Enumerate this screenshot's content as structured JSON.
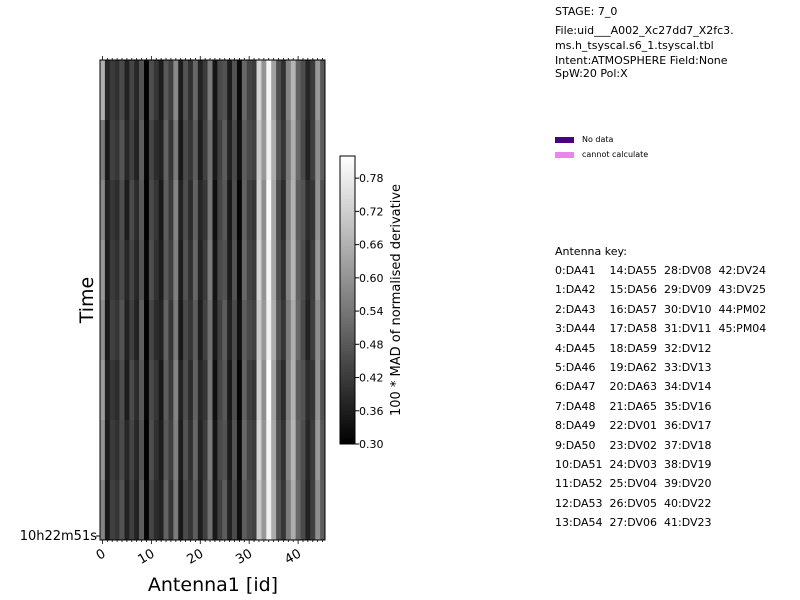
{
  "header": {
    "stage": "STAGE: 7_0",
    "file_line1": "File:uid___A002_Xc27dd7_X2fc3.",
    "file_line2": "ms.h_tsyscal.s6_1.tsyscal.tbl",
    "intent_line": "Intent:ATMOSPHERE Field:None",
    "spw_line": "SpW:20 Pol:X"
  },
  "legend": {
    "items": [
      {
        "label": "No data",
        "color": "#4b0082"
      },
      {
        "label": "cannot calculate",
        "color": "#ee82ee"
      }
    ]
  },
  "antenna_key": {
    "title": "Antenna key:",
    "lines": [
      "0:DA41    14:DA55  28:DV08  42:DV24",
      "1:DA42    15:DA56  29:DV09  43:DV25",
      "2:DA43    16:DA57  30:DV10  44:PM02",
      "3:DA44    17:DA58  31:DV11  45:PM04",
      "4:DA45    18:DA59  32:DV12",
      "5:DA46    19:DA62  33:DV13",
      "6:DA47    20:DA63  34:DV14",
      "7:DA48    21:DA65  35:DV16",
      "8:DA49    22:DV01  36:DV17",
      "9:DA50    23:DV02  37:DV18",
      "10:DA51  24:DV03  38:DV19",
      "11:DA52  25:DV04  39:DV20",
      "12:DA53  26:DV05  40:DV22",
      "13:DA54  27:DV06  41:DV23"
    ]
  },
  "chart_data": {
    "type": "heatmap",
    "xlabel": "Antenna1 [id]",
    "ylabel": "Time",
    "x_ticks": [
      0,
      10,
      20,
      30,
      40
    ],
    "xlim": [
      -0.5,
      45.5
    ],
    "y_tick_label": "10h22m51s",
    "colorbar": {
      "label": "100 * MAD of normalised derivative",
      "ticks": [
        "0.30",
        "0.36",
        "0.42",
        "0.48",
        "0.54",
        "0.60",
        "0.66",
        "0.72",
        "0.78"
      ],
      "range": [
        0.3,
        0.82
      ],
      "colormap": "gray"
    },
    "n_time": 8,
    "column_means": [
      0.6,
      0.36,
      0.42,
      0.4,
      0.46,
      0.37,
      0.44,
      0.38,
      0.48,
      0.3,
      0.45,
      0.4,
      0.36,
      0.49,
      0.42,
      0.56,
      0.36,
      0.46,
      0.4,
      0.5,
      0.37,
      0.42,
      0.54,
      0.34,
      0.44,
      0.48,
      0.36,
      0.46,
      0.32,
      0.5,
      0.44,
      0.42,
      0.72,
      0.6,
      0.8,
      0.64,
      0.46,
      0.4,
      0.56,
      0.66,
      0.5,
      0.46,
      0.38,
      0.42,
      0.6,
      0.48
    ],
    "values": [
      [
        0.66,
        0.38,
        0.42,
        0.4,
        0.45,
        0.37,
        0.44,
        0.38,
        0.47,
        0.3,
        0.46,
        0.41,
        0.36,
        0.48,
        0.43,
        0.58,
        0.36,
        0.47,
        0.4,
        0.51,
        0.37,
        0.42,
        0.55,
        0.34,
        0.45,
        0.47,
        0.36,
        0.47,
        0.32,
        0.51,
        0.44,
        0.42,
        0.73,
        0.6,
        0.8,
        0.63,
        0.46,
        0.4,
        0.57,
        0.67,
        0.5,
        0.46,
        0.38,
        0.42,
        0.61,
        0.48
      ],
      [
        0.55,
        0.35,
        0.43,
        0.41,
        0.47,
        0.38,
        0.43,
        0.37,
        0.49,
        0.31,
        0.44,
        0.39,
        0.37,
        0.5,
        0.41,
        0.55,
        0.35,
        0.45,
        0.41,
        0.49,
        0.36,
        0.43,
        0.53,
        0.35,
        0.43,
        0.49,
        0.37,
        0.45,
        0.33,
        0.49,
        0.45,
        0.43,
        0.71,
        0.61,
        0.79,
        0.65,
        0.47,
        0.41,
        0.55,
        0.65,
        0.51,
        0.45,
        0.37,
        0.43,
        0.59,
        0.49
      ],
      [
        0.58,
        0.37,
        0.41,
        0.39,
        0.46,
        0.36,
        0.45,
        0.39,
        0.48,
        0.3,
        0.45,
        0.41,
        0.35,
        0.49,
        0.42,
        0.57,
        0.37,
        0.46,
        0.39,
        0.5,
        0.38,
        0.41,
        0.54,
        0.33,
        0.44,
        0.48,
        0.35,
        0.46,
        0.31,
        0.5,
        0.43,
        0.41,
        0.72,
        0.59,
        0.81,
        0.64,
        0.45,
        0.39,
        0.56,
        0.66,
        0.49,
        0.47,
        0.39,
        0.41,
        0.6,
        0.47
      ],
      [
        0.61,
        0.36,
        0.42,
        0.4,
        0.45,
        0.38,
        0.44,
        0.38,
        0.47,
        0.31,
        0.46,
        0.4,
        0.36,
        0.48,
        0.43,
        0.56,
        0.36,
        0.47,
        0.4,
        0.51,
        0.37,
        0.42,
        0.55,
        0.34,
        0.45,
        0.47,
        0.36,
        0.47,
        0.32,
        0.51,
        0.44,
        0.42,
        0.73,
        0.6,
        0.8,
        0.64,
        0.46,
        0.4,
        0.57,
        0.67,
        0.5,
        0.46,
        0.38,
        0.42,
        0.61,
        0.48
      ],
      [
        0.59,
        0.35,
        0.43,
        0.41,
        0.47,
        0.37,
        0.43,
        0.37,
        0.49,
        0.3,
        0.44,
        0.39,
        0.37,
        0.5,
        0.41,
        0.55,
        0.35,
        0.45,
        0.41,
        0.49,
        0.36,
        0.43,
        0.53,
        0.35,
        0.43,
        0.49,
        0.37,
        0.45,
        0.33,
        0.49,
        0.45,
        0.43,
        0.71,
        0.61,
        0.79,
        0.65,
        0.47,
        0.41,
        0.55,
        0.65,
        0.51,
        0.45,
        0.37,
        0.43,
        0.59,
        0.49
      ],
      [
        0.62,
        0.37,
        0.41,
        0.39,
        0.46,
        0.36,
        0.45,
        0.39,
        0.48,
        0.31,
        0.45,
        0.41,
        0.35,
        0.49,
        0.42,
        0.57,
        0.37,
        0.46,
        0.39,
        0.5,
        0.38,
        0.41,
        0.54,
        0.33,
        0.44,
        0.48,
        0.35,
        0.46,
        0.31,
        0.5,
        0.43,
        0.41,
        0.72,
        0.59,
        0.81,
        0.63,
        0.45,
        0.39,
        0.56,
        0.66,
        0.49,
        0.47,
        0.39,
        0.41,
        0.6,
        0.47
      ],
      [
        0.6,
        0.36,
        0.42,
        0.4,
        0.45,
        0.38,
        0.44,
        0.38,
        0.47,
        0.3,
        0.46,
        0.4,
        0.36,
        0.48,
        0.43,
        0.56,
        0.36,
        0.47,
        0.4,
        0.51,
        0.37,
        0.42,
        0.55,
        0.34,
        0.45,
        0.47,
        0.36,
        0.47,
        0.32,
        0.51,
        0.44,
        0.42,
        0.73,
        0.6,
        0.8,
        0.64,
        0.46,
        0.4,
        0.57,
        0.67,
        0.5,
        0.46,
        0.38,
        0.42,
        0.61,
        0.48
      ],
      [
        0.57,
        0.35,
        0.43,
        0.41,
        0.47,
        0.37,
        0.43,
        0.37,
        0.49,
        0.31,
        0.44,
        0.39,
        0.37,
        0.5,
        0.41,
        0.55,
        0.35,
        0.45,
        0.41,
        0.49,
        0.36,
        0.43,
        0.53,
        0.35,
        0.43,
        0.49,
        0.37,
        0.45,
        0.33,
        0.49,
        0.45,
        0.43,
        0.71,
        0.61,
        0.79,
        0.65,
        0.47,
        0.41,
        0.55,
        0.65,
        0.51,
        0.45,
        0.37,
        0.43,
        0.59,
        0.49
      ]
    ]
  }
}
